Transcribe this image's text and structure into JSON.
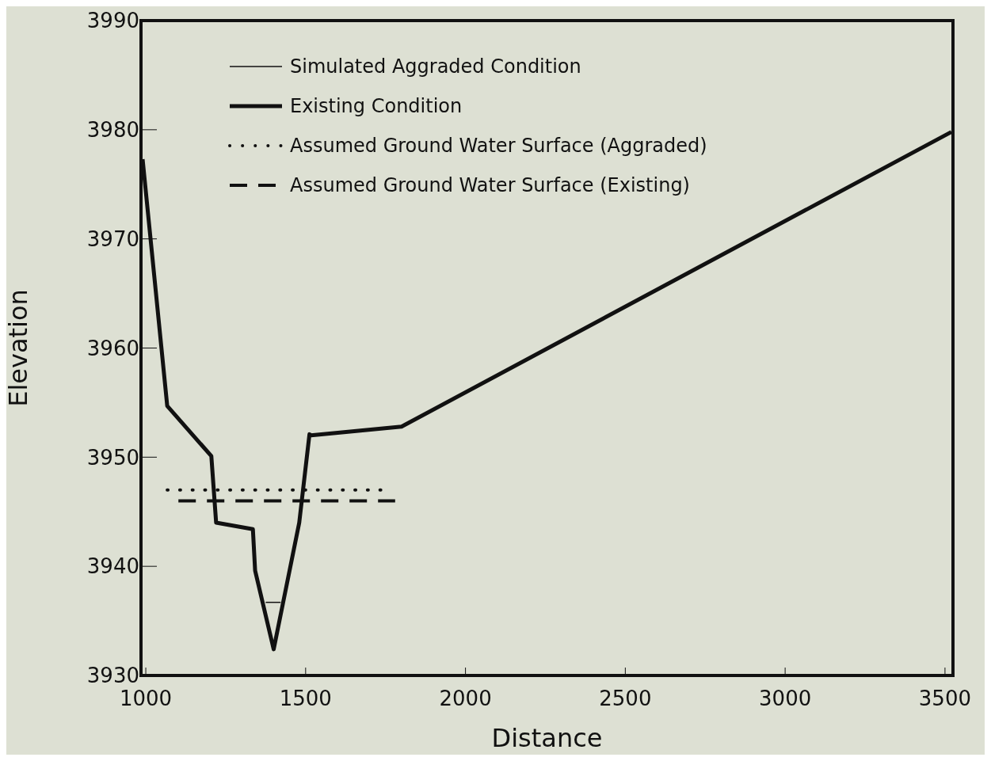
{
  "chart_data": {
    "type": "line",
    "xlabel": "Distance",
    "ylabel": "Elevation",
    "xlim": [
      985,
      3525
    ],
    "xticks": [
      1000,
      1500,
      2000,
      2500,
      3000,
      3500
    ],
    "ylim": [
      3930,
      3990
    ],
    "yticks": [
      3930,
      3940,
      3950,
      3960,
      3970,
      3980,
      3990
    ],
    "grid": false,
    "legend": "top left",
    "marker": "none",
    "series": [
      {
        "name": "Existing Condition",
        "color": "#111111",
        "line_style": "solid",
        "x": [
          990,
          1067,
          1205,
          1220,
          1335,
          1342,
          1400,
          1480,
          1512,
          1517,
          1800,
          3520
        ],
        "values": [
          3977.3,
          3954.7,
          3950.1,
          3944,
          3943.4,
          3939.6,
          3932.4,
          3944,
          3952.1,
          3952,
          3952.8,
          3979.8
        ]
      },
      {
        "name": "Simulated Aggraded Condition",
        "color": "#111111",
        "line_style": "solid",
        "x": [
          1375,
          1422
        ],
        "values": [
          3936.7,
          3936.7
        ]
      },
      {
        "name": "Assumed Ground Water Surface (Aggraded)",
        "color": "#111111",
        "line_style": "dotted",
        "x": [
          1067,
          1735
        ],
        "values": [
          3947,
          3947
        ]
      },
      {
        "name": "Assumed Ground Water Surface (Existing)",
        "color": "#111111",
        "line_style": "dashed",
        "x": [
          1102,
          1780
        ],
        "values": [
          3946,
          3946
        ]
      }
    ]
  }
}
